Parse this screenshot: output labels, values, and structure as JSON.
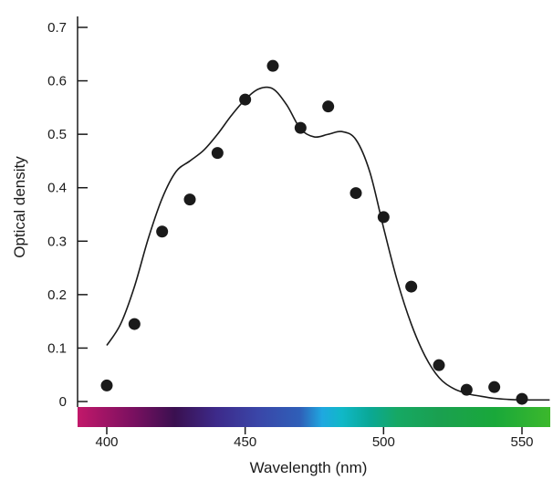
{
  "chart_data": {
    "type": "scatter",
    "title": "",
    "xlabel": "Wavelength (nm)",
    "ylabel": "Optical density",
    "xlim": [
      390,
      560
    ],
    "ylim": [
      -0.02,
      0.72
    ],
    "x_ticks": [
      "400",
      "450",
      "500",
      "550"
    ],
    "y_ticks": [
      "0",
      "0.1",
      "0.2",
      "0.3",
      "0.4",
      "0.5",
      "0.6",
      "0.7"
    ],
    "grid": false,
    "legend": "none",
    "series": [
      {
        "kind": "points",
        "color": "#1a1a1a",
        "x": [
          400,
          410,
          420,
          430,
          440,
          450,
          460,
          470,
          480,
          490,
          500,
          510,
          520,
          530,
          540,
          550
        ],
        "y": [
          0.03,
          0.145,
          0.318,
          0.378,
          0.465,
          0.565,
          0.628,
          0.512,
          0.552,
          0.39,
          0.345,
          0.215,
          0.068,
          0.022,
          0.027,
          0.005
        ]
      },
      {
        "kind": "curve",
        "color": "#1a1a1a",
        "x": [
          400,
          405,
          410,
          415,
          420,
          425,
          430,
          435,
          440,
          445,
          450,
          455,
          460,
          465,
          470,
          475,
          480,
          485,
          490,
          495,
          500,
          505,
          510,
          515,
          520,
          525,
          530,
          535,
          540,
          545,
          550,
          555,
          560
        ],
        "y": [
          0.105,
          0.145,
          0.215,
          0.305,
          0.38,
          0.43,
          0.45,
          0.47,
          0.5,
          0.535,
          0.565,
          0.585,
          0.585,
          0.555,
          0.51,
          0.495,
          0.5,
          0.505,
          0.49,
          0.43,
          0.325,
          0.225,
          0.145,
          0.085,
          0.045,
          0.025,
          0.015,
          0.01,
          0.006,
          0.004,
          0.003,
          0.003,
          0.003
        ]
      }
    ],
    "spectrum_bar": {
      "stops": [
        {
          "x": 390,
          "color": "#c2186a"
        },
        {
          "x": 410,
          "color": "#7a1060"
        },
        {
          "x": 425,
          "color": "#3a1050"
        },
        {
          "x": 440,
          "color": "#3d2a8a"
        },
        {
          "x": 455,
          "color": "#3a46a8"
        },
        {
          "x": 470,
          "color": "#2f5fb8"
        },
        {
          "x": 478,
          "color": "#1fa8e0"
        },
        {
          "x": 485,
          "color": "#10b8c8"
        },
        {
          "x": 495,
          "color": "#0aa896"
        },
        {
          "x": 505,
          "color": "#16a864"
        },
        {
          "x": 520,
          "color": "#1aa050"
        },
        {
          "x": 540,
          "color": "#19a83a"
        },
        {
          "x": 560,
          "color": "#3cb82c"
        }
      ]
    }
  }
}
